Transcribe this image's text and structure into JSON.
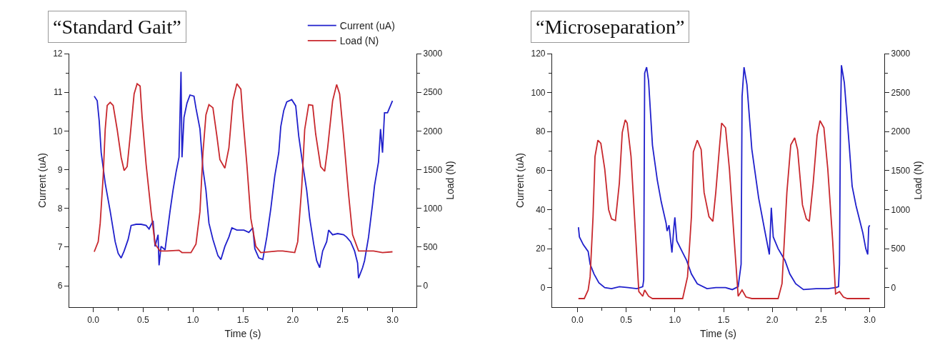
{
  "chart_data": [
    {
      "type": "line",
      "title": "“Standard Gait”",
      "xlabel": "Time (s)",
      "ylabel": "Current (uA)",
      "y2label": "Load (N)",
      "xlim": [
        -0.24,
        3.24
      ],
      "xticks": [
        {
          "value": 0,
          "label": "0.0"
        },
        {
          "value": 0.5,
          "label": "0.5"
        },
        {
          "value": 1,
          "label": "1.0"
        },
        {
          "value": 1.5,
          "label": "1.5"
        },
        {
          "value": 2,
          "label": "2.0"
        },
        {
          "value": 2.5,
          "label": "2.5"
        },
        {
          "value": 3,
          "label": "3.0"
        }
      ],
      "ylim": [
        5.45,
        12
      ],
      "yticks": [
        6,
        7,
        8,
        9,
        10,
        11,
        12
      ],
      "y2lim": [
        -275,
        3000
      ],
      "y2ticks": [
        0,
        500,
        1000,
        1500,
        2000,
        2500,
        3000
      ],
      "legend": "top right",
      "series": [
        {
          "name": "Current (uA)",
          "color": "#2020cc",
          "x": [
            0.01,
            0.04,
            0.06,
            0.08,
            0.12,
            0.17,
            0.22,
            0.25,
            0.28,
            0.31,
            0.35,
            0.38,
            0.43,
            0.48,
            0.53,
            0.56,
            0.6,
            0.62,
            0.65,
            0.66,
            0.68,
            0.72,
            0.77,
            0.8,
            0.83,
            0.86,
            0.88,
            0.89,
            0.91,
            0.94,
            0.97,
            1.01,
            1.03,
            1.07,
            1.1,
            1.13,
            1.16,
            1.2,
            1.25,
            1.28,
            1.32,
            1.36,
            1.39,
            1.44,
            1.51,
            1.56,
            1.6,
            1.62,
            1.66,
            1.7,
            1.74,
            1.78,
            1.82,
            1.86,
            1.88,
            1.91,
            1.94,
            1.99,
            2.03,
            2.06,
            2.1,
            2.14,
            2.17,
            2.21,
            2.24,
            2.27,
            2.3,
            2.34,
            2.36,
            2.4,
            2.45,
            2.51,
            2.54,
            2.58,
            2.62,
            2.65,
            2.66,
            2.7,
            2.72,
            2.76,
            2.8,
            2.82,
            2.86,
            2.88,
            2.9,
            2.92,
            2.95,
            3.0
          ],
          "values": [
            10.9,
            10.78,
            10.26,
            9.44,
            8.65,
            7.93,
            7.14,
            6.84,
            6.72,
            6.9,
            7.2,
            7.56,
            7.59,
            7.59,
            7.56,
            7.47,
            7.68,
            7.02,
            7.32,
            6.53,
            7.02,
            6.93,
            7.93,
            8.47,
            8.93,
            9.32,
            11.53,
            9.32,
            10.35,
            10.72,
            10.93,
            10.9,
            10.59,
            10.05,
            9.02,
            8.47,
            7.62,
            7.2,
            6.78,
            6.68,
            7.02,
            7.26,
            7.5,
            7.44,
            7.44,
            7.38,
            7.5,
            6.96,
            6.72,
            6.68,
            7.26,
            7.99,
            8.84,
            9.44,
            10.11,
            10.53,
            10.75,
            10.81,
            10.65,
            9.87,
            9.14,
            8.47,
            7.75,
            7.08,
            6.65,
            6.47,
            6.9,
            7.14,
            7.44,
            7.32,
            7.35,
            7.32,
            7.26,
            7.14,
            6.9,
            6.59,
            6.2,
            6.47,
            6.65,
            7.26,
            8.11,
            8.59,
            9.2,
            10.05,
            9.44,
            10.47,
            10.47,
            10.78
          ]
        },
        {
          "name": "Load (N)",
          "color": "#c8282d",
          "axis": "y2",
          "x": [
            0.01,
            0.05,
            0.07,
            0.1,
            0.12,
            0.14,
            0.17,
            0.2,
            0.24,
            0.28,
            0.31,
            0.34,
            0.37,
            0.41,
            0.44,
            0.47,
            0.49,
            0.53,
            0.58,
            0.62,
            0.67,
            0.74,
            0.86,
            0.89,
            0.98,
            1.03,
            1.07,
            1.1,
            1.13,
            1.16,
            1.2,
            1.24,
            1.27,
            1.32,
            1.36,
            1.4,
            1.44,
            1.48,
            1.5,
            1.54,
            1.58,
            1.63,
            1.68,
            1.85,
            1.9,
            2.02,
            2.05,
            2.09,
            2.12,
            2.16,
            2.2,
            2.23,
            2.28,
            2.32,
            2.35,
            2.4,
            2.44,
            2.47,
            2.51,
            2.56,
            2.6,
            2.66,
            2.81,
            2.9,
            3.0
          ],
          "values": [
            440,
            570,
            810,
            1420,
            2020,
            2330,
            2370,
            2330,
            2020,
            1660,
            1490,
            1540,
            1930,
            2480,
            2610,
            2580,
            2180,
            1570,
            960,
            540,
            450,
            450,
            460,
            430,
            430,
            540,
            960,
            1720,
            2210,
            2340,
            2300,
            1930,
            1630,
            1520,
            1780,
            2390,
            2610,
            2540,
            2180,
            1570,
            870,
            510,
            430,
            450,
            450,
            430,
            570,
            1270,
            2020,
            2340,
            2330,
            1960,
            1540,
            1480,
            1780,
            2390,
            2600,
            2480,
            1930,
            1180,
            660,
            450,
            450,
            430,
            440
          ]
        }
      ]
    },
    {
      "type": "line",
      "title": "“Microseparation”",
      "xlabel": "Time (s)",
      "ylabel": "Current (uA)",
      "y2label": "Load (N)",
      "xlim": [
        -0.26,
        3.15
      ],
      "xticks": [
        {
          "value": 0,
          "label": "0.0"
        },
        {
          "value": 0.5,
          "label": "0.5"
        },
        {
          "value": 1,
          "label": "1.0"
        },
        {
          "value": 1.5,
          "label": "1.5"
        },
        {
          "value": 2,
          "label": "2.0"
        },
        {
          "value": 2.5,
          "label": "2.5"
        },
        {
          "value": 3,
          "label": "3.0"
        }
      ],
      "ylim": [
        -10,
        120
      ],
      "yticks": [
        0,
        20,
        40,
        60,
        80,
        100,
        120
      ],
      "y2lim": [
        -250,
        3000
      ],
      "y2ticks": [
        0,
        500,
        1000,
        1500,
        2000,
        2500,
        3000
      ],
      "series": [
        {
          "color": "#2020cc",
          "x": [
            0.01,
            0.02,
            0.06,
            0.11,
            0.13,
            0.17,
            0.22,
            0.28,
            0.35,
            0.43,
            0.52,
            0.61,
            0.67,
            0.68,
            0.69,
            0.71,
            0.73,
            0.77,
            0.82,
            0.86,
            0.91,
            0.92,
            0.94,
            0.97,
            0.99,
            1.0,
            1.02,
            1.08,
            1.12,
            1.17,
            1.23,
            1.33,
            1.42,
            1.52,
            1.59,
            1.65,
            1.68,
            1.69,
            1.71,
            1.74,
            1.79,
            1.86,
            1.92,
            1.97,
            1.99,
            2.01,
            2.06,
            2.13,
            2.18,
            2.24,
            2.32,
            2.45,
            2.57,
            2.65,
            2.68,
            2.69,
            2.7,
            2.71,
            2.74,
            2.79,
            2.82,
            2.86,
            2.92,
            2.93,
            2.96,
            2.98,
            2.99,
            3.0
          ],
          "values": [
            31,
            26,
            22,
            18.5,
            12,
            7,
            2.5,
            0,
            -0.5,
            0.5,
            0,
            -0.5,
            0.5,
            4,
            110,
            113,
            106,
            73,
            55,
            44,
            33,
            29,
            32,
            18,
            31,
            36,
            24,
            18,
            14,
            7,
            2,
            -0.5,
            0,
            0,
            -1,
            0.5,
            12,
            98,
            113,
            104,
            71,
            46,
            30,
            17,
            41,
            26,
            20,
            14,
            7,
            2,
            -1,
            -0.5,
            -0.5,
            0,
            0.5,
            12,
            85,
            114,
            105,
            73,
            52,
            42,
            30,
            28,
            20,
            17,
            31,
            32
          ]
        },
        {
          "color": "#c8282d",
          "axis": "y2",
          "x": [
            0.01,
            0.07,
            0.11,
            0.13,
            0.16,
            0.18,
            0.21,
            0.24,
            0.28,
            0.32,
            0.35,
            0.39,
            0.43,
            0.46,
            0.49,
            0.51,
            0.55,
            0.6,
            0.63,
            0.67,
            0.69,
            0.73,
            0.77,
            0.99,
            1.08,
            1.13,
            1.17,
            1.19,
            1.23,
            1.27,
            1.3,
            1.35,
            1.39,
            1.42,
            1.46,
            1.48,
            1.52,
            1.56,
            1.61,
            1.65,
            1.69,
            1.73,
            1.79,
            2.06,
            2.1,
            2.15,
            2.19,
            2.23,
            2.26,
            2.31,
            2.35,
            2.38,
            2.42,
            2.46,
            2.49,
            2.53,
            2.57,
            2.62,
            2.65,
            2.69,
            2.73,
            2.77,
            3.0
          ],
          "values": [
            -140,
            -140,
            -30,
            140,
            910,
            1680,
            1890,
            1850,
            1520,
            1000,
            880,
            860,
            1340,
            1990,
            2150,
            2110,
            1680,
            600,
            -50,
            -110,
            -30,
            -110,
            -140,
            -140,
            -140,
            140,
            910,
            1740,
            1890,
            1770,
            1220,
            910,
            850,
            1220,
            1830,
            2110,
            2050,
            1520,
            600,
            -110,
            -30,
            -120,
            -140,
            -140,
            50,
            1220,
            1830,
            1920,
            1770,
            1060,
            880,
            850,
            1340,
            1950,
            2140,
            2050,
            1520,
            600,
            -80,
            -50,
            -120,
            -140,
            -140
          ]
        }
      ]
    }
  ]
}
